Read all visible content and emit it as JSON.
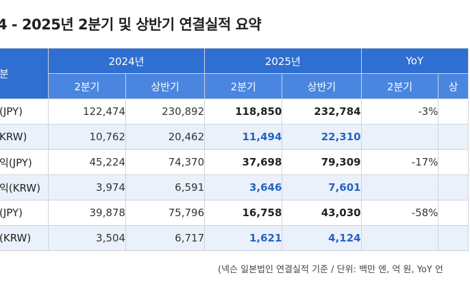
{
  "title": "4 - 2025년 2분기 및 상반기 연결실적 요약",
  "header": {
    "corner_label": "분",
    "years": [
      "2024년",
      "2025년",
      "YoY"
    ],
    "periods": [
      "2분기",
      "상반기",
      "2분기",
      "상반기",
      "2분기",
      "상"
    ]
  },
  "rows": [
    {
      "label": "(JPY)",
      "q2_2024": "122,474",
      "h1_2024": "230,892",
      "q2_2025": "118,850",
      "h1_2025": "232,784",
      "yoy_q2": "-3%"
    },
    {
      "label": "KRW)",
      "q2_2024": "10,762",
      "h1_2024": "20,462",
      "q2_2025": "11,494",
      "h1_2025": "22,310",
      "yoy_q2": ""
    },
    {
      "label": "익(JPY)",
      "q2_2024": "45,224",
      "h1_2024": "74,370",
      "q2_2025": "37,698",
      "h1_2025": "79,309",
      "yoy_q2": "-17%"
    },
    {
      "label": "익(KRW)",
      "q2_2024": "3,974",
      "h1_2024": "6,591",
      "q2_2025": "3,646",
      "h1_2025": "7,601",
      "yoy_q2": ""
    },
    {
      "label": "(JPY)",
      "q2_2024": "39,878",
      "h1_2024": "75,796",
      "q2_2025": "16,758",
      "h1_2025": "43,030",
      "yoy_q2": "-58%"
    },
    {
      "label": "(KRW)",
      "q2_2024": "3,504",
      "h1_2024": "6,717",
      "q2_2025": "1,621",
      "h1_2025": "4,124",
      "yoy_q2": ""
    }
  ],
  "footnote": "(넥슨 일본법인 연결실적 기준 / 단위: 백만 엔, 억 원, YoY 언",
  "colors": {
    "header_dark": "#2f6fd1",
    "header_light": "#4a86e0",
    "krw_row_bg": "#eaf1fb",
    "krw_highlight": "#2563c4"
  }
}
